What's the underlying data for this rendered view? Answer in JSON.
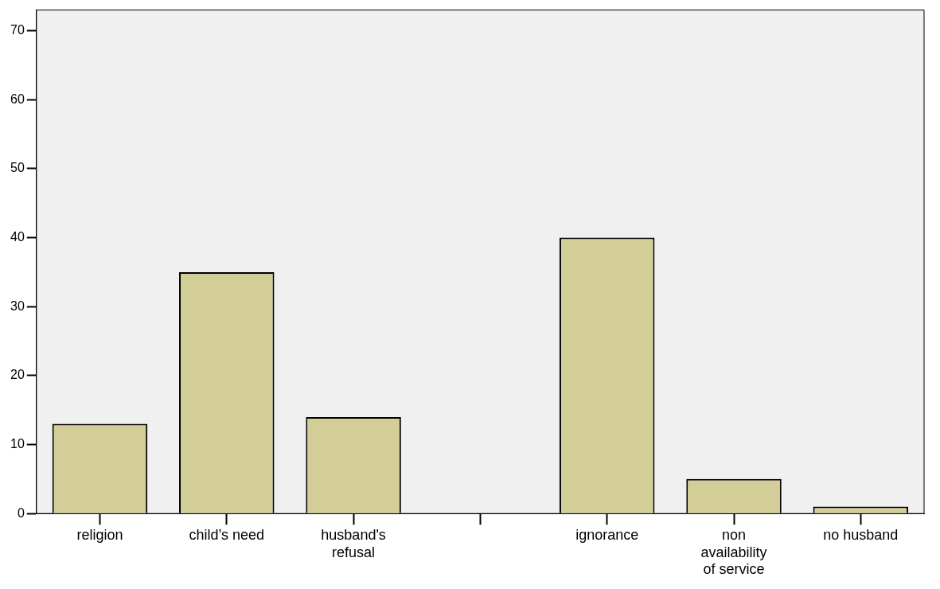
{
  "chart_data": {
    "type": "bar",
    "categories": [
      "religion",
      "child’s need",
      "husband's refusal",
      null,
      "ignorance",
      "non availability of service",
      "no husband"
    ],
    "values": [
      13,
      35,
      14,
      null,
      40,
      5,
      1
    ],
    "color": "#d3ce97",
    "ylim": [
      0,
      73
    ],
    "yticks": [
      0,
      10,
      20,
      30,
      40,
      50,
      60,
      70
    ],
    "grid": false
  }
}
